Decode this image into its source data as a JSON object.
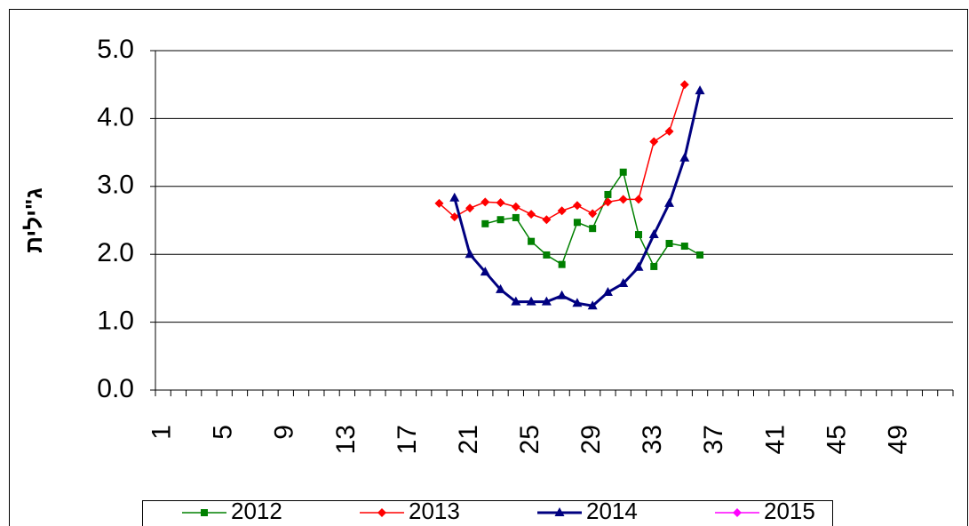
{
  "chart_data": {
    "type": "line",
    "y_label": "ג\"ילית",
    "categories": [
      1,
      null,
      null,
      null,
      5,
      null,
      null,
      null,
      9,
      null,
      null,
      null,
      13,
      null,
      null,
      null,
      17,
      null,
      null,
      null,
      21,
      null,
      null,
      null,
      25,
      null,
      null,
      null,
      29,
      null,
      null,
      null,
      33,
      null,
      null,
      null,
      37,
      null,
      null,
      null,
      41,
      null,
      null,
      null,
      45,
      null,
      null,
      null,
      49,
      null,
      null,
      null
    ],
    "series": [
      {
        "name": "2012",
        "color": "#008000",
        "marker": "square",
        "values": [
          null,
          null,
          null,
          null,
          null,
          null,
          null,
          null,
          null,
          null,
          null,
          null,
          null,
          null,
          null,
          null,
          null,
          null,
          null,
          null,
          null,
          2.45,
          2.51,
          2.54,
          2.19,
          1.99,
          1.85,
          2.47,
          2.38,
          2.88,
          3.21,
          2.29,
          1.82,
          2.16,
          2.12,
          1.99,
          null,
          null,
          null,
          null,
          null,
          null,
          null,
          null,
          null,
          null,
          null,
          null,
          null,
          null,
          null,
          null
        ]
      },
      {
        "name": "2013",
        "color": "#ff0000",
        "marker": "diamond",
        "values": [
          null,
          null,
          null,
          null,
          null,
          null,
          null,
          null,
          null,
          null,
          null,
          null,
          null,
          null,
          null,
          null,
          null,
          null,
          2.75,
          2.55,
          2.68,
          2.77,
          2.76,
          2.7,
          2.59,
          2.51,
          2.64,
          2.72,
          2.6,
          2.77,
          2.81,
          2.81,
          3.66,
          3.81,
          4.5,
          null,
          null,
          null,
          null,
          null,
          null,
          null,
          null,
          null,
          null,
          null,
          null,
          null,
          null,
          null,
          null,
          null
        ]
      },
      {
        "name": "2014",
        "color": "#000080",
        "marker": "triangle",
        "values": [
          null,
          null,
          null,
          null,
          null,
          null,
          null,
          null,
          null,
          null,
          null,
          null,
          null,
          null,
          null,
          null,
          null,
          null,
          null,
          2.83,
          2.0,
          1.74,
          1.48,
          1.3,
          1.3,
          1.3,
          1.39,
          1.28,
          1.24,
          1.44,
          1.57,
          1.81,
          2.29,
          2.75,
          3.42,
          4.41,
          null,
          null,
          null,
          null,
          null,
          null,
          null,
          null,
          null,
          null,
          null,
          null,
          null,
          null,
          null,
          null
        ]
      },
      {
        "name": "2015",
        "color": "#ff00ff",
        "marker": "diamond",
        "values": [
          null,
          null,
          null,
          null,
          null,
          null,
          null,
          null,
          null,
          null,
          null,
          null,
          null,
          null,
          null,
          null,
          null,
          null,
          null,
          null,
          null,
          null,
          null,
          null,
          null,
          null,
          null,
          null,
          null,
          null,
          null,
          null,
          null,
          null,
          null,
          null,
          null,
          null,
          null,
          null,
          null,
          null,
          null,
          null,
          null,
          null,
          null,
          null,
          null,
          null,
          null,
          null
        ]
      }
    ],
    "ylim": [
      0,
      5
    ],
    "yticks": [
      {
        "value": 0,
        "label": "0.0"
      },
      {
        "value": 1,
        "label": "1.0"
      },
      {
        "value": 2,
        "label": "2.0"
      },
      {
        "value": 3,
        "label": "3.0"
      },
      {
        "value": 4,
        "label": "4.0"
      },
      {
        "value": 5,
        "label": "5.0"
      }
    ],
    "grid": true,
    "legend": "bottom"
  }
}
